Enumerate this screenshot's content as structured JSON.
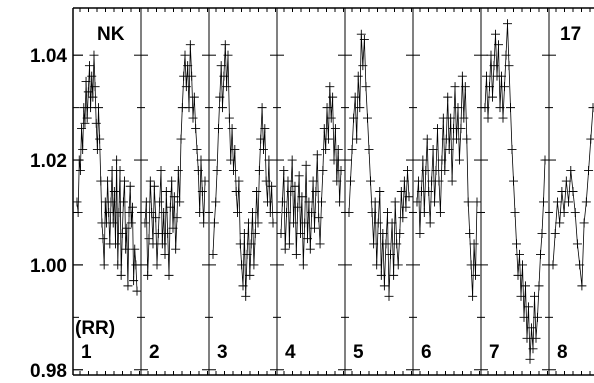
{
  "chart_data": {
    "type": "line",
    "title": "",
    "xlabel": "",
    "ylabel": "",
    "ylim": [
      0.979,
      1.049
    ],
    "y_ticks": [
      0.98,
      1.0,
      1.02,
      1.04
    ],
    "y_tick_labels": [
      "0.98",
      "1.00",
      "1.02",
      "1.04"
    ],
    "y_minor_ticks": [
      0.99,
      1.01,
      1.03
    ],
    "marker": "plus",
    "annotations": {
      "star_name": "NK",
      "star_id": "17",
      "unit_label": "(RR)"
    },
    "panels": [
      {
        "label": "1",
        "values": [
          1.012,
          1.01,
          1.02,
          1.018,
          1.026,
          1.022,
          1.03,
          1.027,
          1.035,
          1.028,
          1.033,
          1.038,
          1.03,
          1.036,
          1.032,
          1.04,
          1.034,
          1.027,
          1.022,
          1.03,
          1.024,
          1.016,
          1.008,
          1.005,
          1.0,
          1.012,
          1.008,
          1.016,
          1.01,
          1.004,
          1.012,
          1.018,
          1.008,
          1.014,
          1.004,
          1.02,
          1.0,
          1.01,
          1.018,
          0.998,
          1.006,
          1.012,
          1.016,
          1.003,
          1.007,
          0.996,
          1.01,
          1.015,
          1.008,
          1.011,
          0.997,
          1.003,
          1.0,
          0.995
        ]
      },
      {
        "label": "2",
        "values": [
          1.008,
          1.012,
          0.998,
          1.005,
          1.016,
          1.01,
          1.004,
          1.015,
          1.009,
          1.0,
          1.006,
          1.012,
          1.018,
          1.004,
          1.01,
          1.002,
          1.014,
          1.006,
          0.998,
          1.011,
          1.016,
          1.007,
          1.013,
          1.003,
          1.009,
          1.018,
          1.012,
          1.024,
          1.03,
          1.036,
          1.04,
          1.034,
          1.038,
          1.03,
          1.042,
          1.036,
          1.028,
          1.032,
          1.026,
          1.022,
          1.018,
          1.01,
          1.02,
          1.014,
          1.008,
          1.016
        ]
      },
      {
        "label": "3",
        "values": [
          1.002,
          1.008,
          1.012,
          1.018,
          1.026,
          1.032,
          1.038,
          1.03,
          1.036,
          1.042,
          1.034,
          1.04,
          1.028,
          1.02,
          1.026,
          1.018,
          1.022,
          1.014,
          1.01,
          1.016,
          1.004,
          1.0,
          0.996,
          1.006,
          0.994,
          1.002,
          1.008,
          0.998,
          1.004,
          1.01,
          1.0,
          1.006,
          1.014,
          1.008,
          1.018,
          1.024,
          1.03,
          1.022,
          1.026,
          1.016,
          1.012,
          1.02,
          1.01,
          1.015,
          1.008
        ]
      },
      {
        "label": "4",
        "values": [
          1.006,
          1.012,
          1.018,
          1.003,
          1.01,
          1.016,
          1.004,
          1.014,
          1.02,
          1.008,
          1.015,
          1.002,
          1.011,
          1.017,
          1.006,
          1.013,
          1.0,
          1.008,
          1.019,
          1.005,
          1.012,
          1.003,
          1.01,
          1.016,
          1.007,
          1.014,
          1.021,
          1.009,
          1.004,
          1.012,
          1.018,
          1.026,
          1.022,
          1.03,
          1.024,
          1.034,
          1.028,
          1.032,
          1.02,
          1.026,
          1.016,
          1.022,
          1.012,
          1.018
        ]
      },
      {
        "label": "5",
        "values": [
          1.01,
          1.016,
          1.022,
          1.028,
          1.032,
          1.024,
          1.036,
          1.03,
          1.044,
          1.038,
          1.043,
          1.034,
          1.028,
          1.022,
          1.016,
          1.01,
          1.004,
          1.012,
          1.0,
          1.008,
          1.014,
          0.998,
          1.006,
          0.996,
          1.004,
          1.01,
          0.994,
          1.002,
          1.008,
          0.998,
          1.012,
          1.004,
          1.0,
          1.006,
          1.014,
          1.009,
          1.016,
          1.011,
          1.018,
          1.013
        ]
      },
      {
        "label": "6",
        "values": [
          1.012,
          1.016,
          1.006,
          1.014,
          1.02,
          1.01,
          1.018,
          1.024,
          1.014,
          1.008,
          1.016,
          1.022,
          1.012,
          1.018,
          1.026,
          1.016,
          1.01,
          1.02,
          1.028,
          1.018,
          1.024,
          1.032,
          1.022,
          1.028,
          1.016,
          1.026,
          1.034,
          1.024,
          1.03,
          1.02,
          1.026,
          1.036,
          1.028,
          1.034,
          1.024,
          1.012,
          1.006,
          1.0,
          0.994,
          1.004,
          0.998,
          1.012
        ]
      },
      {
        "label": "7",
        "values": [
          1.03,
          1.036,
          1.028,
          1.034,
          1.04,
          1.032,
          1.038,
          1.044,
          1.036,
          1.042,
          1.03,
          1.036,
          1.028,
          1.034,
          1.04,
          1.046,
          1.038,
          1.03,
          1.022,
          1.016,
          1.01,
          1.004,
          0.998,
          1.002,
          0.994,
          1.0,
          0.99,
          0.996,
          0.986,
          0.992,
          0.982,
          0.988,
          0.984,
          0.994,
          0.986,
          0.99,
          0.996,
          1.002,
          1.006,
          1.012,
          1.02
        ]
      },
      {
        "label": "8",
        "values": [
          1.0,
          1.006,
          1.012,
          1.008,
          1.014,
          1.01,
          1.016,
          1.012,
          1.018,
          1.014,
          1.01,
          1.004,
          1.0,
          0.996,
          1.008,
          1.012,
          1.018,
          1.024,
          1.03,
          1.036,
          1.04,
          1.034,
          1.038,
          1.03,
          1.026,
          1.032,
          1.028,
          1.022
        ]
      }
    ]
  }
}
